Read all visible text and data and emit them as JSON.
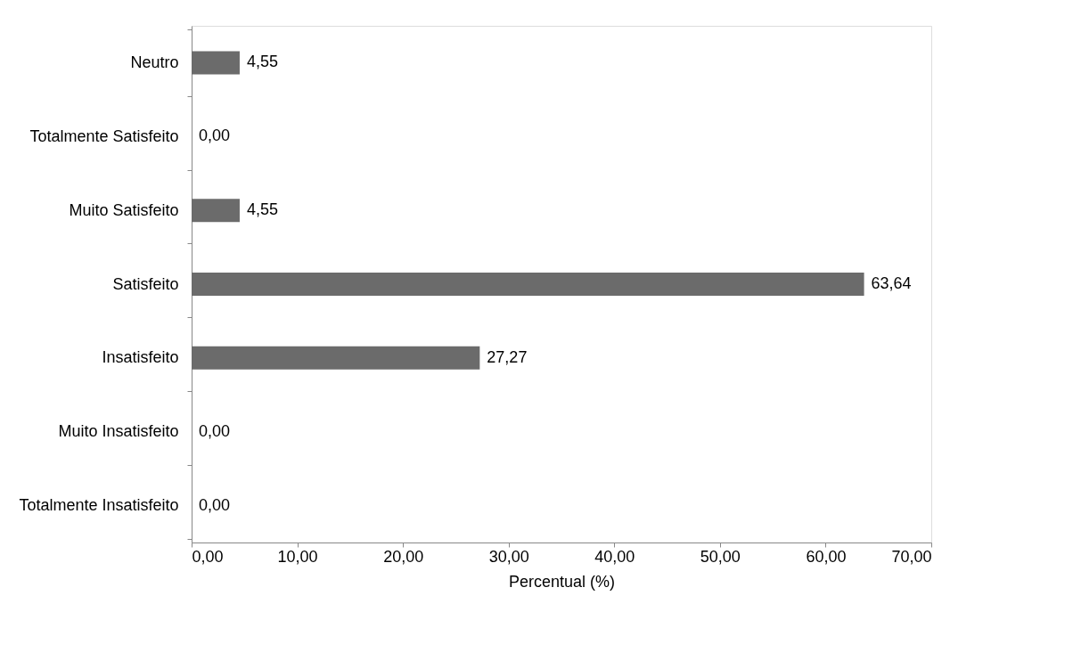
{
  "chart_data": {
    "type": "bar",
    "orientation": "horizontal",
    "xlabel": "Percentual (%)",
    "categories": [
      "Neutro",
      "Totalmente Satisfeito",
      "Muito Satisfeito",
      "Satisfeito",
      "Insatisfeito",
      "Muito Insatisfeito",
      "Totalmente Insatisfeito"
    ],
    "values": [
      4.55,
      0,
      4.55,
      63.64,
      27.27,
      0,
      0
    ],
    "value_labels": [
      "4,55",
      "0,00",
      "4,55",
      "63,64",
      "27,27",
      "0,00",
      "0,00"
    ],
    "color": "#6b6b6b",
    "xlim": [
      0,
      70
    ],
    "xticks": [
      {
        "value": 0,
        "label": "0,00"
      },
      {
        "value": 10,
        "label": "10,00"
      },
      {
        "value": 20,
        "label": "20,00"
      },
      {
        "value": 30,
        "label": "30,00"
      },
      {
        "value": 40,
        "label": "40,00"
      },
      {
        "value": 50,
        "label": "50,00"
      },
      {
        "value": 60,
        "label": "60,00"
      },
      {
        "value": 70,
        "label": "70,00"
      }
    ],
    "grid": false
  }
}
